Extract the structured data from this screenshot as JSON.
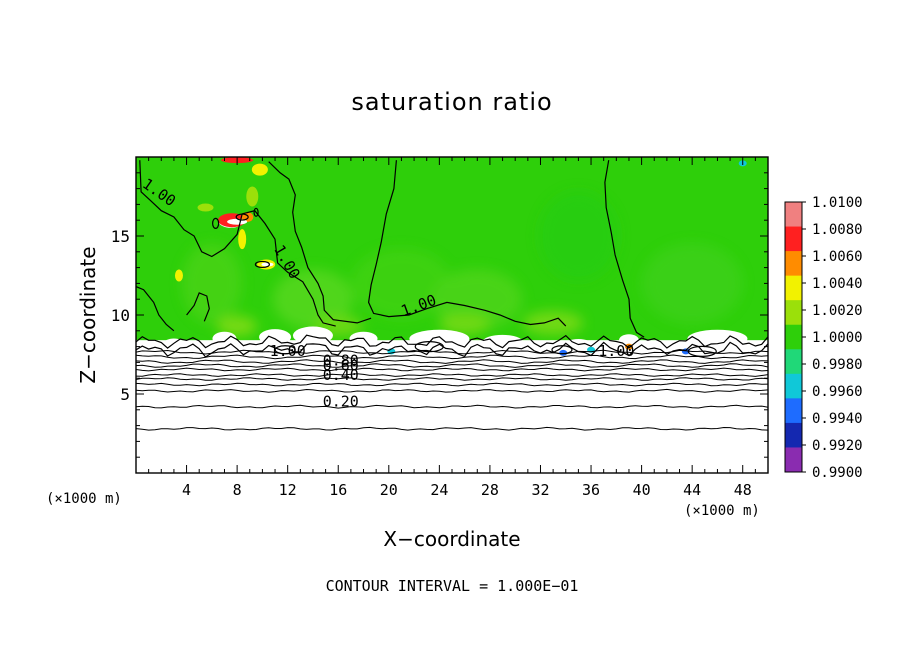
{
  "title": "saturation ratio",
  "xlabel": "X−coordinate",
  "ylabel": "Z−coordinate",
  "x_unit_label": "(×1000 m)",
  "contour_interval_text": "CONTOUR INTERVAL = 1.000E−01",
  "chart_data": {
    "type": "heatmap",
    "title": "saturation ratio",
    "xlabel": "X−coordinate",
    "ylabel": "Z−coordinate",
    "x_unit": "(×1000 m)",
    "xlim": [
      0,
      50
    ],
    "ylim": [
      0,
      20
    ],
    "x_ticks": [
      4,
      8,
      12,
      16,
      20,
      24,
      28,
      32,
      36,
      40,
      44,
      48
    ],
    "y_ticks": [
      5,
      10,
      15
    ],
    "colorbar": {
      "levels": [
        "1.0100",
        "1.0080",
        "1.0060",
        "1.0040",
        "1.0020",
        "1.0000",
        "0.9980",
        "0.9960",
        "0.9940",
        "0.9920",
        "0.9900"
      ],
      "colors": [
        "#f08080",
        "#ff2020",
        "#ff8c00",
        "#f2f200",
        "#9be00a",
        "#2ecf0a",
        "#20d878",
        "#10c8d8",
        "#1e6cff",
        "#1428b0",
        "#8a2cb0"
      ]
    },
    "contour_labels": [
      {
        "text": "1.00",
        "x": 1.6,
        "z": 17.5,
        "angle": 35
      },
      {
        "text": "1.00",
        "x": 11.6,
        "z": 13.2,
        "angle": 60
      },
      {
        "text": "1.00",
        "x": 22.5,
        "z": 10.3,
        "angle": -20
      },
      {
        "text": "1.00",
        "x": 12.0,
        "z": 7.4,
        "angle": 0
      },
      {
        "text": "1.00",
        "x": 38.0,
        "z": 7.4,
        "angle": 0
      },
      {
        "text": "0.80",
        "x": 16.2,
        "z": 6.8,
        "angle": 0
      },
      {
        "text": "0.60",
        "x": 16.2,
        "z": 6.5,
        "angle": 0
      },
      {
        "text": "0.40",
        "x": 16.2,
        "z": 5.9,
        "angle": 0
      },
      {
        "text": "0.20",
        "x": 16.2,
        "z": 4.2,
        "angle": 0
      }
    ],
    "contour_interval": 0.1,
    "grid": false
  }
}
